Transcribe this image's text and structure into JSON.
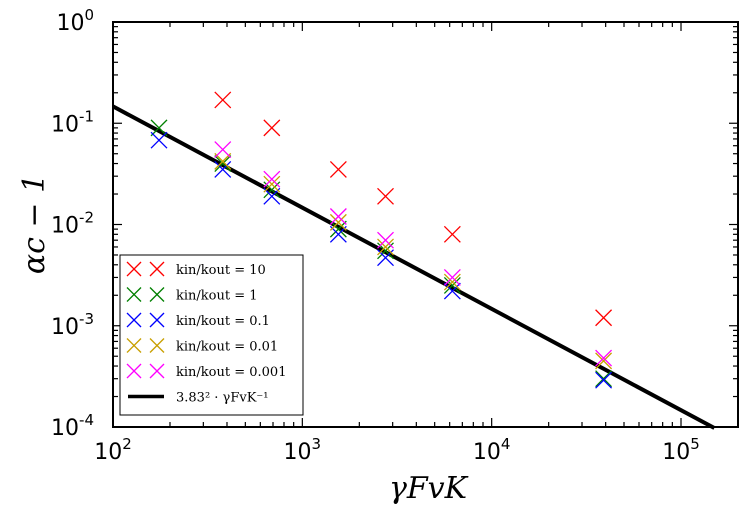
{
  "chart_data": {
    "type": "scatter",
    "xscale": "log",
    "yscale": "log",
    "xlim": [
      100,
      200000
    ],
    "ylim": [
      0.0001,
      1
    ],
    "xlabel": "γFvK",
    "ylabel": "αc − 1",
    "x_ticks": [
      {
        "value": 100,
        "base": "10",
        "exp": "2"
      },
      {
        "value": 1000,
        "base": "10",
        "exp": "3"
      },
      {
        "value": 10000,
        "base": "10",
        "exp": "4"
      },
      {
        "value": 100000,
        "base": "10",
        "exp": "5"
      }
    ],
    "y_ticks": [
      {
        "value": 0.0001,
        "base": "10",
        "exp": "-4"
      },
      {
        "value": 0.001,
        "base": "10",
        "exp": "-3"
      },
      {
        "value": 0.01,
        "base": "10",
        "exp": "-2"
      },
      {
        "value": 0.1,
        "base": "10",
        "exp": "-1"
      },
      {
        "value": 1,
        "base": "10",
        "exp": "0"
      }
    ],
    "series": [
      {
        "name": "k_in/k_out = 10",
        "label": "kin/kout = 10",
        "color": "#ff0000",
        "x": [
          380,
          690,
          1550,
          2750,
          6200,
          39000
        ],
        "y": [
          0.17,
          0.09,
          0.035,
          0.019,
          0.008,
          0.0012
        ]
      },
      {
        "name": "k_in/k_out = 1",
        "label": "kin/kout = 1",
        "color": "#008000",
        "x": [
          175,
          380,
          690,
          1550,
          2750,
          6200,
          39000
        ],
        "y": [
          0.09,
          0.04,
          0.022,
          0.009,
          0.0055,
          0.0025,
          0.0003
        ]
      },
      {
        "name": "k_in/k_out = 0.1",
        "label": "kin/kout = 0.1",
        "color": "#0000ff",
        "x": [
          175,
          380,
          690,
          1550,
          2750,
          6200,
          39000
        ],
        "y": [
          0.068,
          0.035,
          0.019,
          0.008,
          0.0047,
          0.0022,
          0.00029
        ]
      },
      {
        "name": "k_in/k_out = 0.01",
        "label": "kin/kout = 0.01",
        "color": "#c8a000",
        "x": [
          380,
          690,
          1550,
          2750,
          6200,
          39000
        ],
        "y": [
          0.042,
          0.025,
          0.0105,
          0.006,
          0.0027,
          0.00045
        ]
      },
      {
        "name": "k_in/k_out = 0.001",
        "label": "kin/kout = 0.001",
        "color": "#ff00ff",
        "x": [
          380,
          690,
          1550,
          2750,
          6200,
          39000
        ],
        "y": [
          0.055,
          0.028,
          0.012,
          0.007,
          0.003,
          0.00048
        ]
      }
    ],
    "fit_line": {
      "label": "3.83² · γFvK⁻¹",
      "coefficient": 14.67,
      "exponent": -1,
      "x_range": [
        100,
        150000
      ],
      "color": "#000000"
    },
    "legend_position": "lower-left"
  }
}
